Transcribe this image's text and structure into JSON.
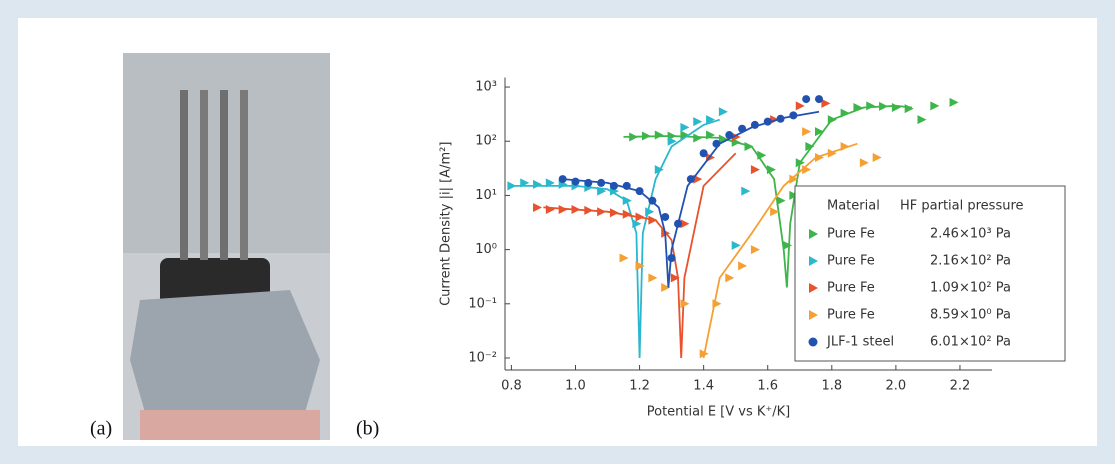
{
  "figure": {
    "label_a": "(a)",
    "label_b": "(b)"
  },
  "chart_data": {
    "type": "scatter",
    "log_y": true,
    "x_label": "Potential E [V vs K⁺/K]",
    "y_label": "Current Density |i| [A/m²]",
    "xlim": [
      0.78,
      2.3
    ],
    "ylim": [
      0.006,
      1500
    ],
    "xticks": [
      0.8,
      {
        "value": 1,
        "label": "1.0"
      },
      1.2,
      1.4,
      1.6,
      1.8,
      {
        "value": 2,
        "label": "2.0"
      },
      2.2
    ],
    "yticks": [
      {
        "value": 0.01,
        "label": "10⁻²"
      },
      {
        "value": 0.1,
        "label": "10⁻¹"
      },
      {
        "value": 1,
        "label": "10⁰"
      },
      {
        "value": 10,
        "label": "10¹"
      },
      {
        "value": 100,
        "label": "10²"
      },
      {
        "value": 1000,
        "label": "10³"
      }
    ],
    "legend_title": [
      "Material",
      "HF partial pressure"
    ],
    "series": [
      {
        "name": "Pure Fe",
        "pressure": "2.46×10³ Pa",
        "color": "#3db54a",
        "marker": "triangle",
        "x": [
          1.18,
          1.22,
          1.26,
          1.3,
          1.34,
          1.38,
          1.42,
          1.46,
          1.5,
          1.54,
          1.58,
          1.61,
          1.64,
          1.66,
          1.68,
          1.7,
          1.73,
          1.76,
          1.8,
          1.84,
          1.88,
          1.92,
          1.96,
          2.0,
          2.04,
          2.08,
          2.12,
          2.18
        ],
        "values": [
          120,
          125,
          130,
          125,
          130,
          115,
          130,
          110,
          95,
          80,
          55,
          30,
          8,
          1.2,
          10,
          40,
          80,
          150,
          250,
          330,
          420,
          450,
          440,
          420,
          400,
          250,
          450,
          520
        ],
        "fit": {
          "x": [
            1.15,
            1.3,
            1.45,
            1.55,
            1.62,
            1.65,
            1.66,
            1.67,
            1.7,
            1.8,
            1.9,
            2.0,
            2.05
          ],
          "values": [
            120,
            125,
            115,
            80,
            20,
            1,
            0.2,
            3,
            40,
            250,
            420,
            450,
            420
          ]
        }
      },
      {
        "name": "Pure Fe",
        "pressure": "2.16×10² Pa",
        "color": "#2bb8cc",
        "marker": "triangle",
        "x": [
          0.8,
          0.84,
          0.88,
          0.92,
          0.96,
          1.0,
          1.04,
          1.08,
          1.12,
          1.16,
          1.19,
          1.2,
          1.23,
          1.26,
          1.3,
          1.34,
          1.38,
          1.42,
          1.46,
          1.5,
          1.53
        ],
        "values": [
          15,
          17,
          16,
          17,
          16,
          15,
          14,
          12,
          12,
          8,
          3,
          0.5,
          5,
          30,
          100,
          180,
          230,
          250,
          350,
          1.2,
          12
        ],
        "fit": {
          "x": [
            0.8,
            1.0,
            1.1,
            1.16,
            1.19,
            1.2,
            1.21,
            1.25,
            1.3,
            1.4,
            1.45
          ],
          "values": [
            15,
            15,
            13,
            8,
            2,
            0.01,
            2,
            20,
            80,
            200,
            250
          ]
        }
      },
      {
        "name": "Pure Fe",
        "pressure": "1.09×10² Pa",
        "color": "#e8522c",
        "marker": "triangle",
        "x": [
          0.88,
          0.92,
          0.96,
          1.0,
          1.04,
          1.08,
          1.12,
          1.16,
          1.2,
          1.24,
          1.28,
          1.31,
          1.34,
          1.38,
          1.42,
          1.5,
          1.56,
          1.62,
          1.7,
          1.78
        ],
        "values": [
          6,
          5.5,
          5.5,
          5.5,
          5.3,
          5,
          4.8,
          4.5,
          4,
          3.5,
          2,
          0.3,
          3,
          20,
          50,
          120,
          30,
          250,
          450,
          500
        ],
        "fit": {
          "x": [
            0.9,
            1.1,
            1.25,
            1.3,
            1.32,
            1.33,
            1.34,
            1.4,
            1.5
          ],
          "values": [
            6,
            5,
            3.5,
            1.5,
            0.3,
            0.01,
            0.3,
            15,
            60
          ]
        }
      },
      {
        "name": "Pure Fe",
        "pressure": "8.59×10⁰ Pa",
        "color": "#f5a032",
        "marker": "triangle",
        "x": [
          1.15,
          1.2,
          1.24,
          1.28,
          1.34,
          1.4,
          1.44,
          1.48,
          1.52,
          1.56,
          1.62,
          1.68,
          1.72,
          1.76,
          1.8,
          1.84,
          1.9,
          1.94,
          1.72
        ],
        "values": [
          0.7,
          0.5,
          0.3,
          0.2,
          0.1,
          0.012,
          0.1,
          0.3,
          0.5,
          1,
          5,
          20,
          30,
          50,
          60,
          80,
          40,
          50,
          150
        ],
        "fit": {
          "x": [
            1.4,
            1.41,
            1.45,
            1.55,
            1.65,
            1.75,
            1.88
          ],
          "values": [
            0.01,
            0.02,
            0.3,
            2,
            15,
            50,
            90
          ]
        }
      },
      {
        "name": "JLF-1 steel",
        "pressure": "6.01×10² Pa",
        "color": "#2252b0",
        "marker": "circle",
        "x": [
          0.96,
          1.0,
          1.04,
          1.08,
          1.12,
          1.16,
          1.2,
          1.24,
          1.28,
          1.3,
          1.32,
          1.36,
          1.4,
          1.44,
          1.48,
          1.52,
          1.56,
          1.6,
          1.64,
          1.68,
          1.72,
          1.76
        ],
        "values": [
          20,
          18,
          17,
          17,
          15,
          15,
          12,
          8,
          4,
          0.7,
          3,
          20,
          60,
          90,
          130,
          170,
          200,
          230,
          260,
          300,
          600,
          600
        ],
        "fit": {
          "x": [
            0.96,
            1.1,
            1.2,
            1.26,
            1.28,
            1.29,
            1.3,
            1.35,
            1.45,
            1.55,
            1.65,
            1.76
          ],
          "values": [
            20,
            17,
            12,
            6,
            2,
            0.2,
            1,
            15,
            90,
            180,
            270,
            350
          ]
        }
      }
    ]
  }
}
